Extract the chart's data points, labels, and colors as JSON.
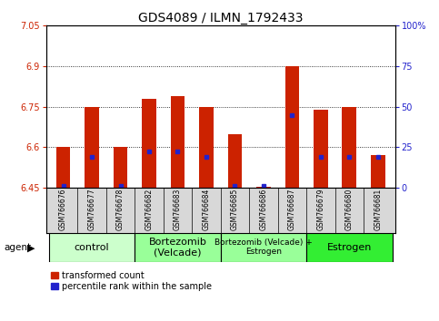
{
  "title": "GDS4089 / ILMN_1792433",
  "samples": [
    "GSM766676",
    "GSM766677",
    "GSM766678",
    "GSM766682",
    "GSM766683",
    "GSM766684",
    "GSM766685",
    "GSM766686",
    "GSM766687",
    "GSM766679",
    "GSM766680",
    "GSM766681"
  ],
  "bar_values": [
    6.6,
    6.75,
    6.6,
    6.78,
    6.79,
    6.75,
    6.65,
    6.455,
    6.9,
    6.74,
    6.75,
    6.57
  ],
  "blue_dot_values": [
    6.457,
    6.563,
    6.457,
    6.583,
    6.583,
    6.563,
    6.457,
    6.457,
    6.72,
    6.563,
    6.563,
    6.563
  ],
  "ymin": 6.45,
  "ymax": 7.05,
  "yticks": [
    6.45,
    6.6,
    6.75,
    6.9,
    7.05
  ],
  "ytick_labels": [
    "6.45",
    "6.6",
    "6.75",
    "6.9",
    "7.05"
  ],
  "right_yticks": [
    0,
    25,
    50,
    75,
    100
  ],
  "right_ytick_labels": [
    "0",
    "25",
    "50",
    "75",
    "100%"
  ],
  "groups": [
    {
      "label": "control",
      "start": 0,
      "end": 3,
      "color": "#ccffcc",
      "fontsize": 8
    },
    {
      "label": "Bortezomib\n(Velcade)",
      "start": 3,
      "end": 6,
      "color": "#99ff99",
      "fontsize": 8
    },
    {
      "label": "Bortezomib (Velcade) +\nEstrogen",
      "start": 6,
      "end": 9,
      "color": "#99ff99",
      "fontsize": 6.5
    },
    {
      "label": "Estrogen",
      "start": 9,
      "end": 12,
      "color": "#33ee33",
      "fontsize": 8
    }
  ],
  "bar_color": "#cc2200",
  "dot_color": "#2222cc",
  "legend_items": [
    {
      "color": "#cc2200",
      "label": "transformed count"
    },
    {
      "color": "#2222cc",
      "label": "percentile rank within the sample"
    }
  ],
  "title_fontsize": 10,
  "tick_fontsize": 7,
  "bar_width": 0.5,
  "agent_label": "agent",
  "background_color": "#ffffff",
  "plot_bg_color": "#ffffff",
  "tick_label_color_left": "#cc2200",
  "tick_label_color_right": "#2222cc",
  "sample_box_color": "#d8d8d8",
  "sample_label_fontsize": 5.5
}
